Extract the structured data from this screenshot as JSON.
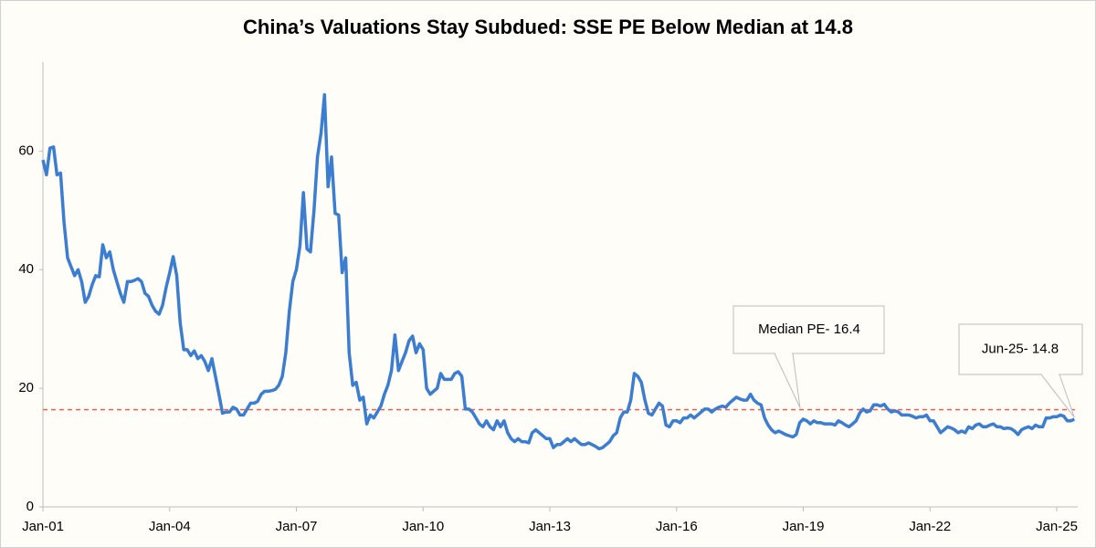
{
  "chart_data": {
    "type": "line",
    "title": "China’s Valuations Stay Subdued: SSE PE Below Median at 14.8",
    "categories": [
      "Jan-01",
      null,
      null,
      null,
      null,
      null,
      null,
      null,
      null,
      null,
      null,
      null,
      null,
      null,
      null,
      null,
      null,
      null,
      null,
      null,
      null,
      null,
      null,
      null,
      null,
      null,
      null,
      null,
      null,
      null,
      null,
      null,
      null,
      null,
      null,
      null,
      "Jan-04",
      null,
      null,
      null,
      null,
      null,
      null,
      null,
      null,
      null,
      null,
      null,
      null,
      null,
      null,
      null,
      null,
      null,
      null,
      null,
      null,
      null,
      null,
      null,
      null,
      null,
      null,
      null,
      null,
      null,
      null,
      null,
      null,
      null,
      null,
      null,
      "Jan-07",
      null,
      null,
      null,
      null,
      null,
      null,
      null,
      null,
      null,
      null,
      null,
      null,
      null,
      null,
      null,
      null,
      null,
      null,
      null,
      null,
      null,
      null,
      null,
      null,
      null,
      null,
      null,
      null,
      null,
      null,
      null,
      null,
      null,
      null,
      null,
      "Jan-10",
      null,
      null,
      null,
      null,
      null,
      null,
      null,
      null,
      null,
      null,
      null,
      null,
      null,
      null,
      null,
      null,
      null,
      null,
      null,
      null,
      null,
      null,
      null,
      null,
      null,
      null,
      null,
      null,
      null,
      null,
      null,
      null,
      null,
      null,
      null,
      "Jan-13",
      null,
      null,
      null,
      null,
      null,
      null,
      null,
      null,
      null,
      null,
      null,
      null,
      null,
      null,
      null,
      null,
      null,
      null,
      null,
      null,
      null,
      null,
      null,
      null,
      null,
      null,
      null,
      null,
      null,
      null,
      null,
      null,
      null,
      null,
      null,
      "Jan-16",
      null,
      null,
      null,
      null,
      null,
      null,
      null,
      null,
      null,
      null,
      null,
      null,
      null,
      null,
      null,
      null,
      null,
      null,
      null,
      null,
      null,
      null,
      null,
      null,
      null,
      null,
      null,
      null,
      null,
      null,
      null,
      null,
      null,
      null,
      null,
      "Jan-19",
      null,
      null,
      null,
      null,
      null,
      null,
      null,
      null,
      null,
      null,
      null,
      null,
      null,
      null,
      null,
      null,
      null,
      null,
      null,
      null,
      null,
      null,
      null,
      null,
      null,
      null,
      null,
      null,
      null,
      null,
      null,
      null,
      null,
      null,
      null,
      "Jan-22",
      null,
      null,
      null,
      null,
      null,
      null,
      null,
      null,
      null,
      null,
      null,
      null,
      null,
      null,
      null,
      null,
      null,
      null,
      null,
      null,
      null,
      null,
      null,
      null,
      null,
      null,
      null,
      null,
      null,
      null,
      null,
      null,
      null,
      null,
      null,
      "Jan-25",
      null,
      null,
      null,
      null,
      null
    ],
    "values": [
      58.5,
      56,
      60.5,
      60.7,
      56,
      56.3,
      48,
      42,
      40.5,
      39,
      40,
      38,
      34.5,
      35.5,
      37.5,
      39,
      38.8,
      44.2,
      42,
      43,
      40,
      38,
      36,
      34.5,
      38,
      38,
      38.2,
      38.5,
      38,
      36,
      35.5,
      34,
      33,
      32.5,
      34,
      37,
      39.5,
      42.2,
      39,
      31,
      26.5,
      26.5,
      25.5,
      26.3,
      25,
      25.5,
      24.5,
      23,
      25,
      22,
      19,
      15.8,
      16,
      16,
      16.8,
      16.5,
      15.5,
      15.5,
      16.5,
      17.5,
      17.5,
      17.8,
      19,
      19.5,
      19.5,
      19.6,
      19.8,
      20.5,
      22,
      26,
      33,
      38,
      40,
      44,
      53,
      43.5,
      43,
      50,
      59,
      63,
      69.5,
      54,
      59,
      49.5,
      49.2,
      39.5,
      42,
      26,
      20.5,
      21,
      18,
      18.5,
      14,
      15.5,
      15,
      16,
      17,
      19,
      20.5,
      23,
      29,
      23,
      24.5,
      26,
      28,
      28.8,
      26,
      27.5,
      26.5,
      20,
      19,
      19.5,
      20,
      22.5,
      21.5,
      21.5,
      21.5,
      22.5,
      22.8,
      22,
      16.5,
      16.5,
      16,
      15,
      14,
      13.5,
      14.5,
      13.5,
      13,
      14.5,
      13.5,
      14.5,
      12.5,
      11.5,
      11,
      11.5,
      11,
      11,
      10.8,
      12.5,
      13,
      12.5,
      12,
      11.5,
      11.5,
      10,
      10.5,
      10.5,
      11,
      11.5,
      11,
      11.5,
      11,
      10.5,
      10.5,
      10.8,
      10.5,
      10.2,
      9.8,
      10,
      10.5,
      11,
      12,
      12.5,
      15,
      16,
      16,
      18,
      22.5,
      22,
      21,
      18,
      15.8,
      15.5,
      16.5,
      17.5,
      17,
      13.8,
      13.5,
      14.5,
      14.5,
      14.2,
      15,
      15,
      15.5,
      15,
      15.5,
      16,
      16.5,
      16.5,
      16,
      16.5,
      16.8,
      17,
      16.8,
      17.5,
      18,
      18.5,
      18.2,
      18,
      18,
      19,
      18,
      17.5,
      17.2,
      15,
      13.8,
      13,
      12.5,
      12.8,
      12.5,
      12.2,
      12,
      11.8,
      12.2,
      14.2,
      14.8,
      14.5,
      14,
      14.5,
      14.2,
      14.2,
      14,
      14,
      14,
      13.8,
      14.5,
      14.2,
      13.8,
      13.5,
      14,
      14.5,
      15.8,
      16.5,
      16,
      16.2,
      17.2,
      17.2,
      17,
      17.3,
      16.5,
      16,
      16.2,
      16,
      15.5,
      15.5,
      15.5,
      15.3,
      15,
      15.2,
      15.2,
      15.5,
      14.5,
      14.5,
      13.5,
      12.5,
      13,
      13.5,
      13.3,
      13,
      12.5,
      12.8,
      12.5,
      13.5,
      13.2,
      13.8,
      14,
      13.5,
      13.5,
      13.8,
      14,
      13.5,
      13.5,
      13.2,
      13.3,
      13.2,
      12.8,
      12.2,
      13,
      13.3,
      13.5,
      13.2,
      13.8,
      13.5,
      13.5,
      15,
      15,
      15.2,
      15.2,
      15.5,
      15.3,
      14.5,
      14.5,
      14.8
    ],
    "color": "#3b7dd0",
    "ylim": [
      0,
      75
    ],
    "yticks": [
      0,
      20,
      40,
      60
    ],
    "grid": false,
    "reference_line": {
      "value": 16.4,
      "color": "#f05a4a"
    },
    "annotations": [
      {
        "text": "Median PE- 16.4"
      },
      {
        "text": "Jun-25- 14.8"
      }
    ]
  }
}
